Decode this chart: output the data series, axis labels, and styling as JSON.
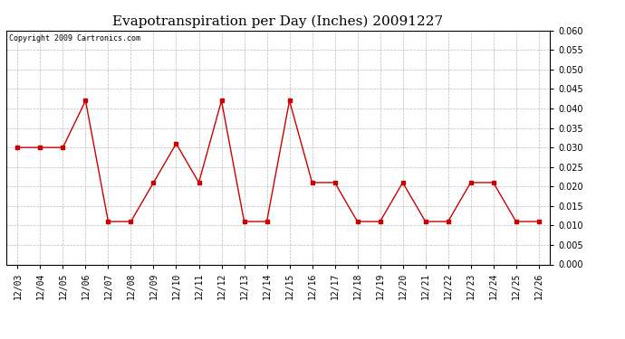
{
  "title": "Evapotranspiration per Day (Inches) 20091227",
  "copyright_text": "Copyright 2009 Cartronics.com",
  "dates": [
    "12/03",
    "12/04",
    "12/05",
    "12/06",
    "12/07",
    "12/08",
    "12/09",
    "12/10",
    "12/11",
    "12/12",
    "12/13",
    "12/14",
    "12/15",
    "12/16",
    "12/17",
    "12/18",
    "12/19",
    "12/20",
    "12/21",
    "12/22",
    "12/23",
    "12/24",
    "12/25",
    "12/26"
  ],
  "values": [
    0.03,
    0.03,
    0.03,
    0.042,
    0.011,
    0.011,
    0.021,
    0.031,
    0.021,
    0.042,
    0.011,
    0.011,
    0.042,
    0.021,
    0.021,
    0.011,
    0.011,
    0.021,
    0.011,
    0.011,
    0.021,
    0.021,
    0.011,
    0.011
  ],
  "ylim": [
    0.0,
    0.06
  ],
  "ytick_step": 0.005,
  "line_color": "#cc0000",
  "marker": "s",
  "marker_size": 2.5,
  "background_color": "#ffffff",
  "plot_bg_color": "#ffffff",
  "grid_color": "#aaaaaa",
  "title_fontsize": 11,
  "copyright_fontsize": 6,
  "tick_fontsize": 7,
  "ytick_fontsize": 7
}
